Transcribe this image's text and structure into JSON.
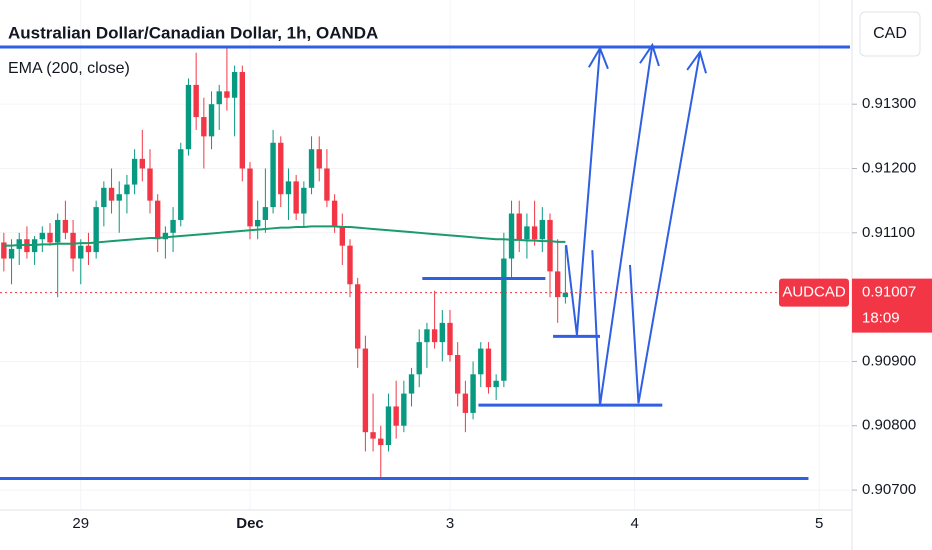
{
  "chart_data": {
    "type": "candlestick",
    "title": "Australian Dollar/Canadian Dollar, 1h, OANDA",
    "indicator": "EMA (200, close)",
    "currency": "CAD",
    "symbol": "AUDCAD",
    "last_price": 0.91007,
    "last_price_label": "0.91007",
    "countdown": "18:09",
    "up_color": "#089981",
    "down_color": "#f23645",
    "ema_color": "#1b9a6c",
    "drawing_color": "#2f5fe3",
    "xlim": [
      -0.5,
      110
    ],
    "ylim": [
      0.90669,
      0.91462
    ],
    "xticks": [
      {
        "value": 10,
        "label": "29"
      },
      {
        "value": 32,
        "label": "Dec"
      },
      {
        "value": 58,
        "label": "3"
      },
      {
        "value": 82,
        "label": "4"
      },
      {
        "value": 106,
        "label": "5"
      }
    ],
    "yticks": [
      {
        "value": 0.913,
        "label": "0.91300"
      },
      {
        "value": 0.912,
        "label": "0.91200"
      },
      {
        "value": 0.911,
        "label": "0.91100"
      },
      {
        "value": 0.909,
        "label": "0.90900"
      },
      {
        "value": 0.908,
        "label": "0.90800"
      },
      {
        "value": 0.907,
        "label": "0.90700"
      }
    ],
    "candles": [
      [
        0.91085,
        0.911,
        0.9104,
        0.9106
      ],
      [
        0.9106,
        0.9109,
        0.9102,
        0.91075
      ],
      [
        0.91075,
        0.911,
        0.9105,
        0.9109
      ],
      [
        0.9109,
        0.9111,
        0.9106,
        0.9107
      ],
      [
        0.9107,
        0.91095,
        0.9105,
        0.9109
      ],
      [
        0.9109,
        0.9111,
        0.9107,
        0.911
      ],
      [
        0.911,
        0.91115,
        0.9108,
        0.91085
      ],
      [
        0.91085,
        0.9113,
        0.91,
        0.9112
      ],
      [
        0.9112,
        0.9115,
        0.9109,
        0.911
      ],
      [
        0.911,
        0.9112,
        0.9104,
        0.9106
      ],
      [
        0.9106,
        0.9109,
        0.9102,
        0.9108
      ],
      [
        0.9108,
        0.911,
        0.9105,
        0.9107
      ],
      [
        0.9107,
        0.9115,
        0.9106,
        0.9114
      ],
      [
        0.9114,
        0.9118,
        0.9111,
        0.9117
      ],
      [
        0.9117,
        0.912,
        0.9113,
        0.9115
      ],
      [
        0.9115,
        0.9118,
        0.911,
        0.9116
      ],
      [
        0.9116,
        0.9119,
        0.9113,
        0.91175
      ],
      [
        0.91175,
        0.9123,
        0.9116,
        0.91215
      ],
      [
        0.91215,
        0.9126,
        0.9118,
        0.912
      ],
      [
        0.912,
        0.9123,
        0.9113,
        0.9115
      ],
      [
        0.9115,
        0.9116,
        0.9107,
        0.9109
      ],
      [
        0.9109,
        0.9111,
        0.9106,
        0.911
      ],
      [
        0.911,
        0.9114,
        0.9107,
        0.9112
      ],
      [
        0.9112,
        0.9124,
        0.9111,
        0.9123
      ],
      [
        0.9123,
        0.9134,
        0.9122,
        0.9133
      ],
      [
        0.9133,
        0.9138,
        0.9126,
        0.9128
      ],
      [
        0.9128,
        0.9131,
        0.912,
        0.9125
      ],
      [
        0.9125,
        0.9132,
        0.9123,
        0.913
      ],
      [
        0.913,
        0.9133,
        0.9126,
        0.9132
      ],
      [
        0.9132,
        0.9139,
        0.9129,
        0.9131
      ],
      [
        0.9131,
        0.9136,
        0.9125,
        0.9135
      ],
      [
        0.9135,
        0.9136,
        0.9118,
        0.912
      ],
      [
        0.912,
        0.9121,
        0.9109,
        0.9111
      ],
      [
        0.9111,
        0.9115,
        0.9109,
        0.9112
      ],
      [
        0.9112,
        0.912,
        0.911,
        0.9114
      ],
      [
        0.9114,
        0.9126,
        0.9113,
        0.9124
      ],
      [
        0.9124,
        0.9125,
        0.9114,
        0.9116
      ],
      [
        0.9116,
        0.912,
        0.9112,
        0.9118
      ],
      [
        0.9118,
        0.9119,
        0.9112,
        0.9113
      ],
      [
        0.9113,
        0.9118,
        0.9111,
        0.9117
      ],
      [
        0.9117,
        0.9125,
        0.9116,
        0.9123
      ],
      [
        0.9123,
        0.9125,
        0.9118,
        0.912
      ],
      [
        0.912,
        0.9123,
        0.9114,
        0.9115
      ],
      [
        0.9115,
        0.9116,
        0.911,
        0.9111
      ],
      [
        0.9111,
        0.9113,
        0.9105,
        0.9108
      ],
      [
        0.9108,
        0.9109,
        0.91,
        0.9102
      ],
      [
        0.9102,
        0.9103,
        0.9089,
        0.9092
      ],
      [
        0.9092,
        0.9094,
        0.9076,
        0.9079
      ],
      [
        0.9079,
        0.9085,
        0.9076,
        0.9078
      ],
      [
        0.9078,
        0.908,
        0.9072,
        0.9077
      ],
      [
        0.9077,
        0.9085,
        0.9076,
        0.9083
      ],
      [
        0.9083,
        0.9087,
        0.9078,
        0.908
      ],
      [
        0.908,
        0.9087,
        0.9079,
        0.9085
      ],
      [
        0.9085,
        0.9089,
        0.9083,
        0.9088
      ],
      [
        0.9088,
        0.9095,
        0.9086,
        0.9093
      ],
      [
        0.9093,
        0.9096,
        0.9089,
        0.9095
      ],
      [
        0.9095,
        0.9101,
        0.9092,
        0.9093
      ],
      [
        0.9093,
        0.9098,
        0.909,
        0.9096
      ],
      [
        0.9096,
        0.9098,
        0.909,
        0.9091
      ],
      [
        0.9091,
        0.9093,
        0.9083,
        0.9085
      ],
      [
        0.9085,
        0.9087,
        0.9079,
        0.9082
      ],
      [
        0.9082,
        0.909,
        0.9081,
        0.9088
      ],
      [
        0.9088,
        0.9093,
        0.9086,
        0.9092
      ],
      [
        0.9092,
        0.9093,
        0.9085,
        0.9086
      ],
      [
        0.9086,
        0.9088,
        0.9084,
        0.9087
      ],
      [
        0.9087,
        0.911,
        0.9086,
        0.9106
      ],
      [
        0.9106,
        0.9115,
        0.9103,
        0.9113
      ],
      [
        0.9113,
        0.9115,
        0.9107,
        0.9109
      ],
      [
        0.9109,
        0.9113,
        0.9106,
        0.9111
      ],
      [
        0.9111,
        0.9115,
        0.9108,
        0.9109
      ],
      [
        0.9109,
        0.9114,
        0.9107,
        0.9112
      ],
      [
        0.9112,
        0.9113,
        0.91,
        0.9104
      ],
      [
        0.9104,
        0.9109,
        0.9096,
        0.91
      ],
      [
        0.91,
        0.9108,
        0.9099,
        0.91007
      ]
    ],
    "ema": [
      0.9108,
      0.9108,
      0.91081,
      0.91081,
      0.91081,
      0.91082,
      0.91082,
      0.91083,
      0.91083,
      0.91083,
      0.91084,
      0.91084,
      0.91085,
      0.91086,
      0.91087,
      0.91088,
      0.91089,
      0.9109,
      0.91091,
      0.91092,
      0.91092,
      0.91093,
      0.91094,
      0.91095,
      0.91096,
      0.91097,
      0.91098,
      0.91099,
      0.911,
      0.91101,
      0.91102,
      0.91103,
      0.91104,
      0.91105,
      0.91106,
      0.91107,
      0.91108,
      0.91108,
      0.91109,
      0.91109,
      0.9111,
      0.9111,
      0.9111,
      0.9111,
      0.91109,
      0.91109,
      0.91108,
      0.91107,
      0.91106,
      0.91105,
      0.91104,
      0.91103,
      0.91102,
      0.91101,
      0.911,
      0.91099,
      0.91098,
      0.91097,
      0.91096,
      0.91095,
      0.91094,
      0.91093,
      0.91092,
      0.91091,
      0.9109,
      0.9109,
      0.91089,
      0.91089,
      0.91088,
      0.91088,
      0.91087,
      0.91087,
      0.91086,
      0.91086
    ],
    "drawings": {
      "levels": [
        {
          "price": 0.91389,
          "from": -0.5,
          "to": 110
        },
        {
          "price": 0.90718,
          "from": -0.5,
          "to": 104.6
        },
        {
          "price": 0.91029,
          "from": 54.4,
          "to": 70.4
        },
        {
          "price": 0.90939,
          "from": 71.4,
          "to": 77.5
        },
        {
          "price": 0.90832,
          "from": 61.7,
          "to": 85.6
        }
      ],
      "arrows": [
        [
          [
            73.1,
            0.91081
          ],
          [
            74.5,
            0.90941
          ],
          [
            77.5,
            0.91387
          ]
        ],
        [
          [
            76.5,
            0.91073
          ],
          [
            77.5,
            0.90832
          ],
          [
            84.3,
            0.91392
          ]
        ],
        [
          [
            81.4,
            0.9105
          ],
          [
            82.5,
            0.90835
          ],
          [
            90.5,
            0.91381
          ]
        ]
      ]
    }
  }
}
